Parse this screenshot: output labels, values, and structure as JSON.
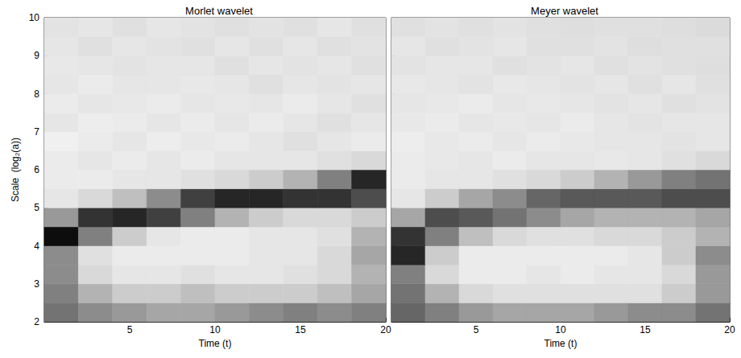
{
  "chart_data": [
    {
      "type": "heatmap",
      "title": "Morlet wavelet",
      "x_label": "Time (t)",
      "y_label": "Scale  (log₂(a))",
      "xlim": [
        0,
        20
      ],
      "xticks": [
        5,
        10,
        15,
        20
      ],
      "ylim": [
        2,
        10
      ],
      "yticks": [
        2,
        3,
        4,
        5,
        6,
        7,
        8,
        9,
        10
      ],
      "tick_labels": true,
      "zlim": [
        0,
        1
      ],
      "x_edges": [
        0,
        2,
        4,
        6,
        8,
        10,
        12,
        14,
        16,
        18,
        20
      ],
      "y_edges": [
        2,
        2.5,
        3,
        3.5,
        4,
        4.5,
        5,
        5.5,
        6,
        6.5,
        7,
        7.5,
        8,
        8.5,
        9,
        9.5,
        10
      ],
      "cells": [
        [
          0.55,
          0.45,
          0.4,
          0.35,
          0.35,
          0.4,
          0.45,
          0.5,
          0.45,
          0.5
        ],
        [
          0.5,
          0.3,
          0.2,
          0.2,
          0.25,
          0.2,
          0.2,
          0.2,
          0.25,
          0.35
        ],
        [
          0.45,
          0.15,
          0.1,
          0.1,
          0.12,
          0.1,
          0.1,
          0.12,
          0.15,
          0.3
        ],
        [
          0.45,
          0.12,
          0.08,
          0.08,
          0.08,
          0.08,
          0.1,
          0.1,
          0.15,
          0.35
        ],
        [
          0.95,
          0.5,
          0.2,
          0.1,
          0.08,
          0.08,
          0.1,
          0.1,
          0.12,
          0.3
        ],
        [
          0.4,
          0.8,
          0.85,
          0.75,
          0.5,
          0.3,
          0.2,
          0.15,
          0.15,
          0.2
        ],
        [
          0.1,
          0.15,
          0.25,
          0.45,
          0.75,
          0.85,
          0.85,
          0.8,
          0.8,
          0.7
        ],
        [
          0.08,
          0.08,
          0.1,
          0.1,
          0.12,
          0.15,
          0.2,
          0.3,
          0.5,
          0.85
        ],
        [
          0.08,
          0.1,
          0.08,
          0.1,
          0.08,
          0.1,
          0.1,
          0.1,
          0.12,
          0.15
        ],
        [
          0.06,
          0.08,
          0.1,
          0.07,
          0.09,
          0.08,
          0.1,
          0.12,
          0.1,
          0.08
        ],
        [
          0.1,
          0.07,
          0.08,
          0.1,
          0.08,
          0.1,
          0.08,
          0.1,
          0.12,
          0.1
        ],
        [
          0.08,
          0.1,
          0.09,
          0.08,
          0.1,
          0.09,
          0.1,
          0.08,
          0.1,
          0.12
        ],
        [
          0.1,
          0.08,
          0.1,
          0.1,
          0.09,
          0.1,
          0.12,
          0.1,
          0.11,
          0.1
        ],
        [
          0.09,
          0.1,
          0.11,
          0.1,
          0.1,
          0.12,
          0.1,
          0.11,
          0.1,
          0.12
        ],
        [
          0.1,
          0.12,
          0.1,
          0.11,
          0.12,
          0.1,
          0.12,
          0.1,
          0.12,
          0.11
        ],
        [
          0.11,
          0.1,
          0.12,
          0.1,
          0.11,
          0.12,
          0.11,
          0.12,
          0.1,
          0.12
        ]
      ]
    },
    {
      "type": "heatmap",
      "title": "Meyer wavelet",
      "x_label": "Time (t)",
      "xlim": [
        0,
        20
      ],
      "xticks": [
        5,
        10,
        15,
        20
      ],
      "ylim": [
        2,
        10
      ],
      "yticks": [
        2,
        3,
        4,
        5,
        6,
        7,
        8,
        9,
        10
      ],
      "tick_labels": "x",
      "zlim": [
        0,
        1
      ],
      "x_edges": [
        0,
        2,
        4,
        6,
        8,
        10,
        12,
        14,
        16,
        18,
        20
      ],
      "y_edges": [
        2,
        2.5,
        3,
        3.5,
        4,
        4.5,
        5,
        5.5,
        6,
        6.5,
        7,
        7.5,
        8,
        8.5,
        9,
        9.5,
        10
      ],
      "cells": [
        [
          0.6,
          0.5,
          0.4,
          0.35,
          0.35,
          0.35,
          0.4,
          0.45,
          0.45,
          0.55
        ],
        [
          0.55,
          0.3,
          0.15,
          0.12,
          0.12,
          0.12,
          0.12,
          0.12,
          0.2,
          0.4
        ],
        [
          0.5,
          0.15,
          0.08,
          0.08,
          0.1,
          0.08,
          0.1,
          0.1,
          0.15,
          0.4
        ],
        [
          0.85,
          0.2,
          0.08,
          0.08,
          0.08,
          0.08,
          0.08,
          0.1,
          0.2,
          0.45
        ],
        [
          0.8,
          0.5,
          0.25,
          0.15,
          0.12,
          0.12,
          0.15,
          0.15,
          0.2,
          0.3
        ],
        [
          0.35,
          0.7,
          0.65,
          0.55,
          0.45,
          0.35,
          0.3,
          0.3,
          0.3,
          0.35
        ],
        [
          0.1,
          0.2,
          0.35,
          0.45,
          0.6,
          0.65,
          0.65,
          0.65,
          0.7,
          0.7
        ],
        [
          0.08,
          0.1,
          0.1,
          0.12,
          0.15,
          0.2,
          0.3,
          0.4,
          0.5,
          0.55
        ],
        [
          0.08,
          0.09,
          0.1,
          0.08,
          0.1,
          0.1,
          0.09,
          0.1,
          0.12,
          0.15
        ],
        [
          0.07,
          0.09,
          0.08,
          0.1,
          0.08,
          0.09,
          0.1,
          0.1,
          0.11,
          0.1
        ],
        [
          0.09,
          0.08,
          0.1,
          0.09,
          0.1,
          0.08,
          0.1,
          0.11,
          0.1,
          0.1
        ],
        [
          0.1,
          0.09,
          0.08,
          0.1,
          0.09,
          0.1,
          0.11,
          0.1,
          0.12,
          0.11
        ],
        [
          0.09,
          0.1,
          0.11,
          0.09,
          0.1,
          0.11,
          0.1,
          0.12,
          0.1,
          0.12
        ],
        [
          0.11,
          0.1,
          0.1,
          0.12,
          0.11,
          0.1,
          0.12,
          0.11,
          0.12,
          0.13
        ],
        [
          0.1,
          0.12,
          0.11,
          0.1,
          0.12,
          0.12,
          0.11,
          0.13,
          0.12,
          0.12
        ],
        [
          0.12,
          0.11,
          0.12,
          0.11,
          0.12,
          0.13,
          0.12,
          0.12,
          0.13,
          0.14
        ]
      ]
    }
  ]
}
